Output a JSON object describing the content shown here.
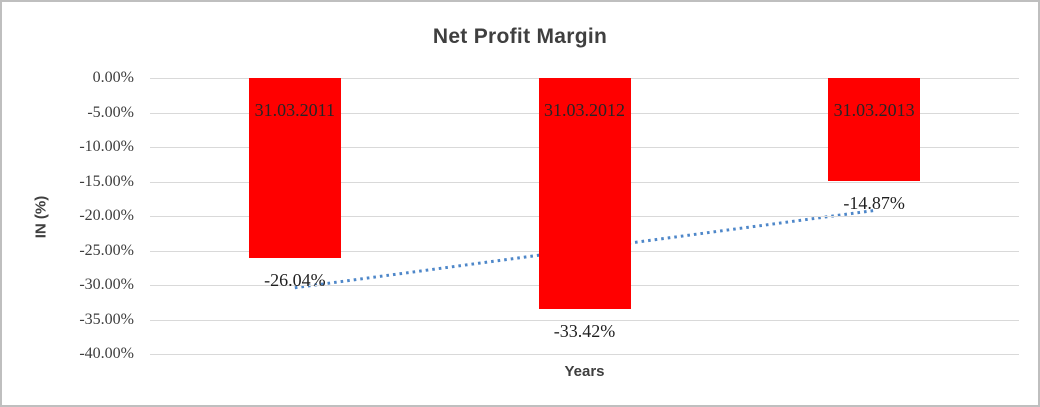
{
  "frame": {
    "background": "#ffffff",
    "border_color": "#bfbfbf"
  },
  "chart_data": {
    "type": "bar",
    "title": "Net Profit Margin",
    "xlabel": "Years",
    "ylabel": "IN (%)",
    "categories": [
      "31.03.2011",
      "31.03.2012",
      "31.03.2013"
    ],
    "values": [
      -26.04,
      -33.42,
      -14.87
    ],
    "value_labels": [
      "-26.04%",
      "-33.42%",
      "-14.87%"
    ],
    "ylim": [
      0,
      -40
    ],
    "ytick_step": -5,
    "ytick_labels": [
      "0.00%",
      "-5.00%",
      "-10.00%",
      "-15.00%",
      "-20.00%",
      "-25.00%",
      "-30.00%",
      "-35.00%",
      "-40.00%"
    ],
    "grid": true,
    "legend": "none",
    "bar_color": "#ff0000",
    "category_label_color": "#262626",
    "value_label_color": "#1f1f1f",
    "axis_text_color": "#3f3f3f",
    "gridline_color": "#d9d9d9",
    "trendline": {
      "type": "linear",
      "style": "dotted",
      "color": "#4e87c9",
      "start_value": -30.4,
      "end_value": -19.2
    }
  }
}
